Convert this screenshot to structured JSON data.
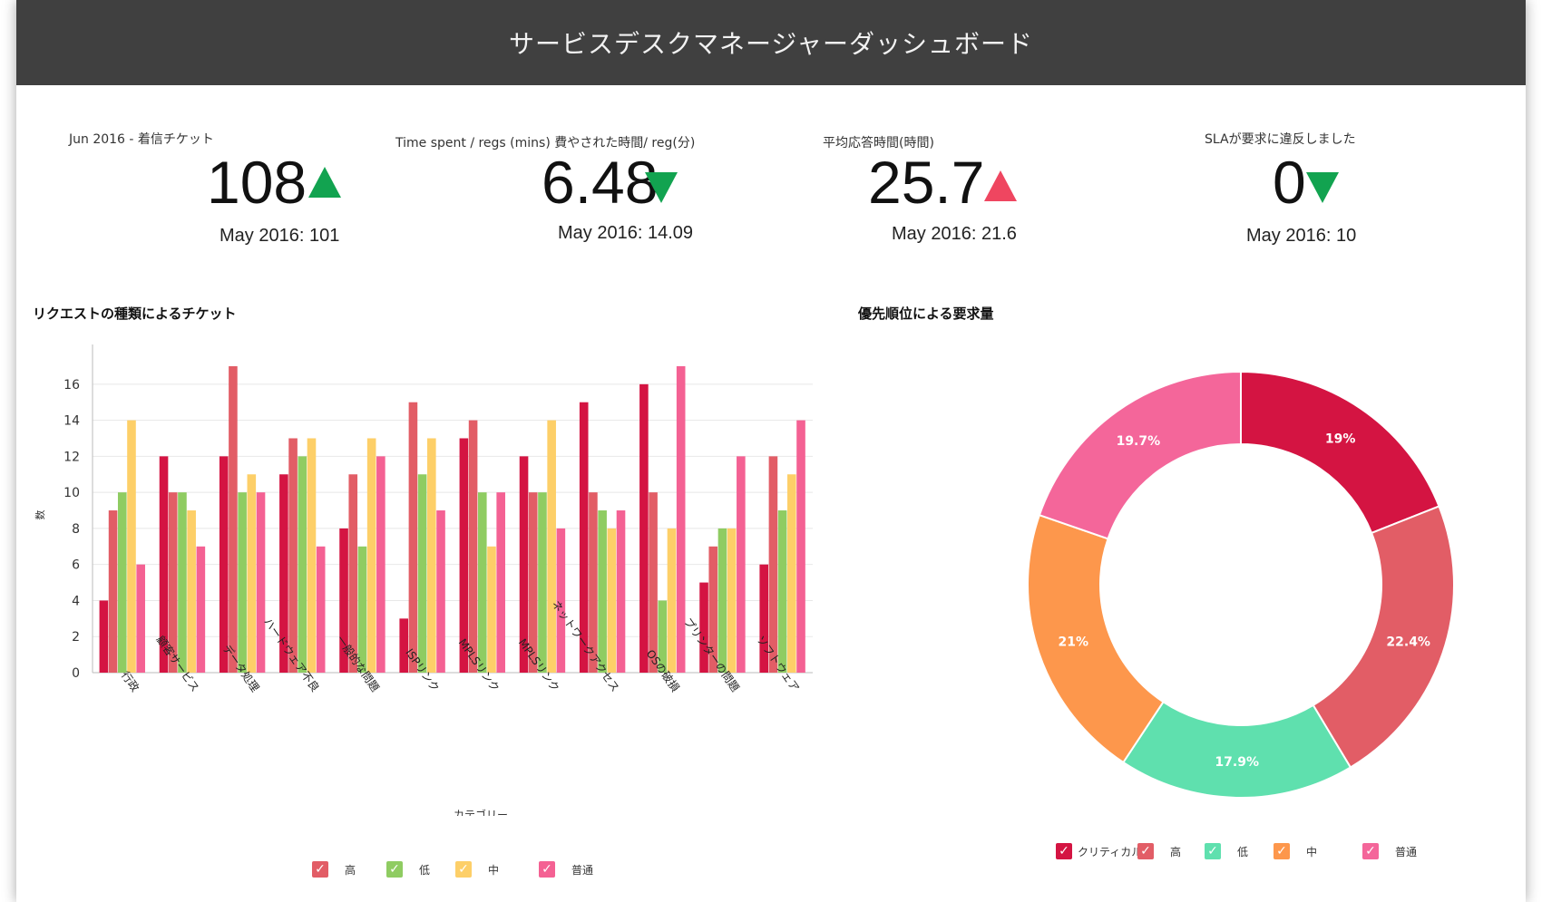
{
  "header": {
    "title": "サービスデスクマネージャーダッシュボード"
  },
  "kpis": [
    {
      "label": "Jun 2016 - 着信チケット",
      "value": "108",
      "sub": "May 2016: 101",
      "arrow": "up-green"
    },
    {
      "label": "Time spent / regs (mins) 費やされた時間/ reg(分)",
      "value": "6.48",
      "sub": "May 2016: 14.09",
      "arrow": "down-green"
    },
    {
      "label": "平均応答時間(時間)",
      "value": "25.7",
      "sub": "May 2016: 21.6",
      "arrow": "up-red"
    },
    {
      "label": "SLAが要求に違反しました",
      "value": "0",
      "sub": "May 2016: 10",
      "arrow": "down-green"
    }
  ],
  "colors": {
    "critical": "#d41442",
    "high": "#e25d66",
    "low": "#8fcc62",
    "medium": "#fdcf68",
    "normal": "#f46193",
    "donut_critical": "#d41442",
    "donut_high": "#e25d66",
    "donut_low": "#5fe0ae",
    "donut_medium": "#fd974c",
    "donut_normal": "#f4669a"
  },
  "bar_section": {
    "title": "リクエストの種類によるチケット"
  },
  "donut_section": {
    "title": "優先順位による要求量"
  },
  "chart_data": [
    {
      "type": "bar",
      "title": "リクエストの種類によるチケット",
      "xlabel": "カテゴリー",
      "ylabel": "数",
      "ylim": [
        0,
        17.5
      ],
      "yticks": [
        0,
        2,
        4,
        6,
        8,
        10,
        12,
        14,
        16
      ],
      "grid": true,
      "legend_position": "bottom",
      "categories": [
        "行政",
        "顧客サービス",
        "データ処理",
        "ハードウェア不良",
        "一般的な問題",
        "ISPリンク",
        "MPLSリンク",
        "MPLSリンク",
        "ネットワークアクセス",
        "OSの破損",
        "プリンターの問題",
        "ソフトウェア"
      ],
      "series": [
        {
          "key": "critical",
          "values": [
            4,
            12,
            12,
            11,
            8,
            3,
            13,
            12,
            15,
            16,
            5,
            6
          ]
        },
        {
          "key": "high",
          "name": "高",
          "values": [
            9,
            10,
            17,
            13,
            11,
            15,
            14,
            10,
            10,
            10,
            7,
            12
          ]
        },
        {
          "key": "low",
          "name": "低",
          "values": [
            10,
            10,
            10,
            12,
            7,
            11,
            10,
            10,
            9,
            4,
            8,
            9
          ]
        },
        {
          "key": "medium",
          "name": "中",
          "values": [
            14,
            9,
            11,
            13,
            13,
            13,
            7,
            14,
            8,
            8,
            8,
            11
          ]
        },
        {
          "key": "normal",
          "name": "普通",
          "values": [
            6,
            7,
            10,
            7,
            12,
            9,
            10,
            8,
            9,
            17,
            12,
            14
          ]
        }
      ]
    },
    {
      "type": "pie",
      "title": "優先順位による要求量",
      "legend_position": "bottom",
      "slices": [
        {
          "key": "donut_critical",
          "name": "クリティカル",
          "value": 19,
          "label": "19%"
        },
        {
          "key": "donut_high",
          "name": "高",
          "value": 22.4,
          "label": "22.4%"
        },
        {
          "key": "donut_low",
          "name": "低",
          "value": 17.9,
          "label": "17.9%"
        },
        {
          "key": "donut_medium",
          "name": "中",
          "value": 21,
          "label": "21%"
        },
        {
          "key": "donut_normal",
          "name": "普通",
          "value": 19.7,
          "label": "19.7%"
        }
      ]
    }
  ]
}
